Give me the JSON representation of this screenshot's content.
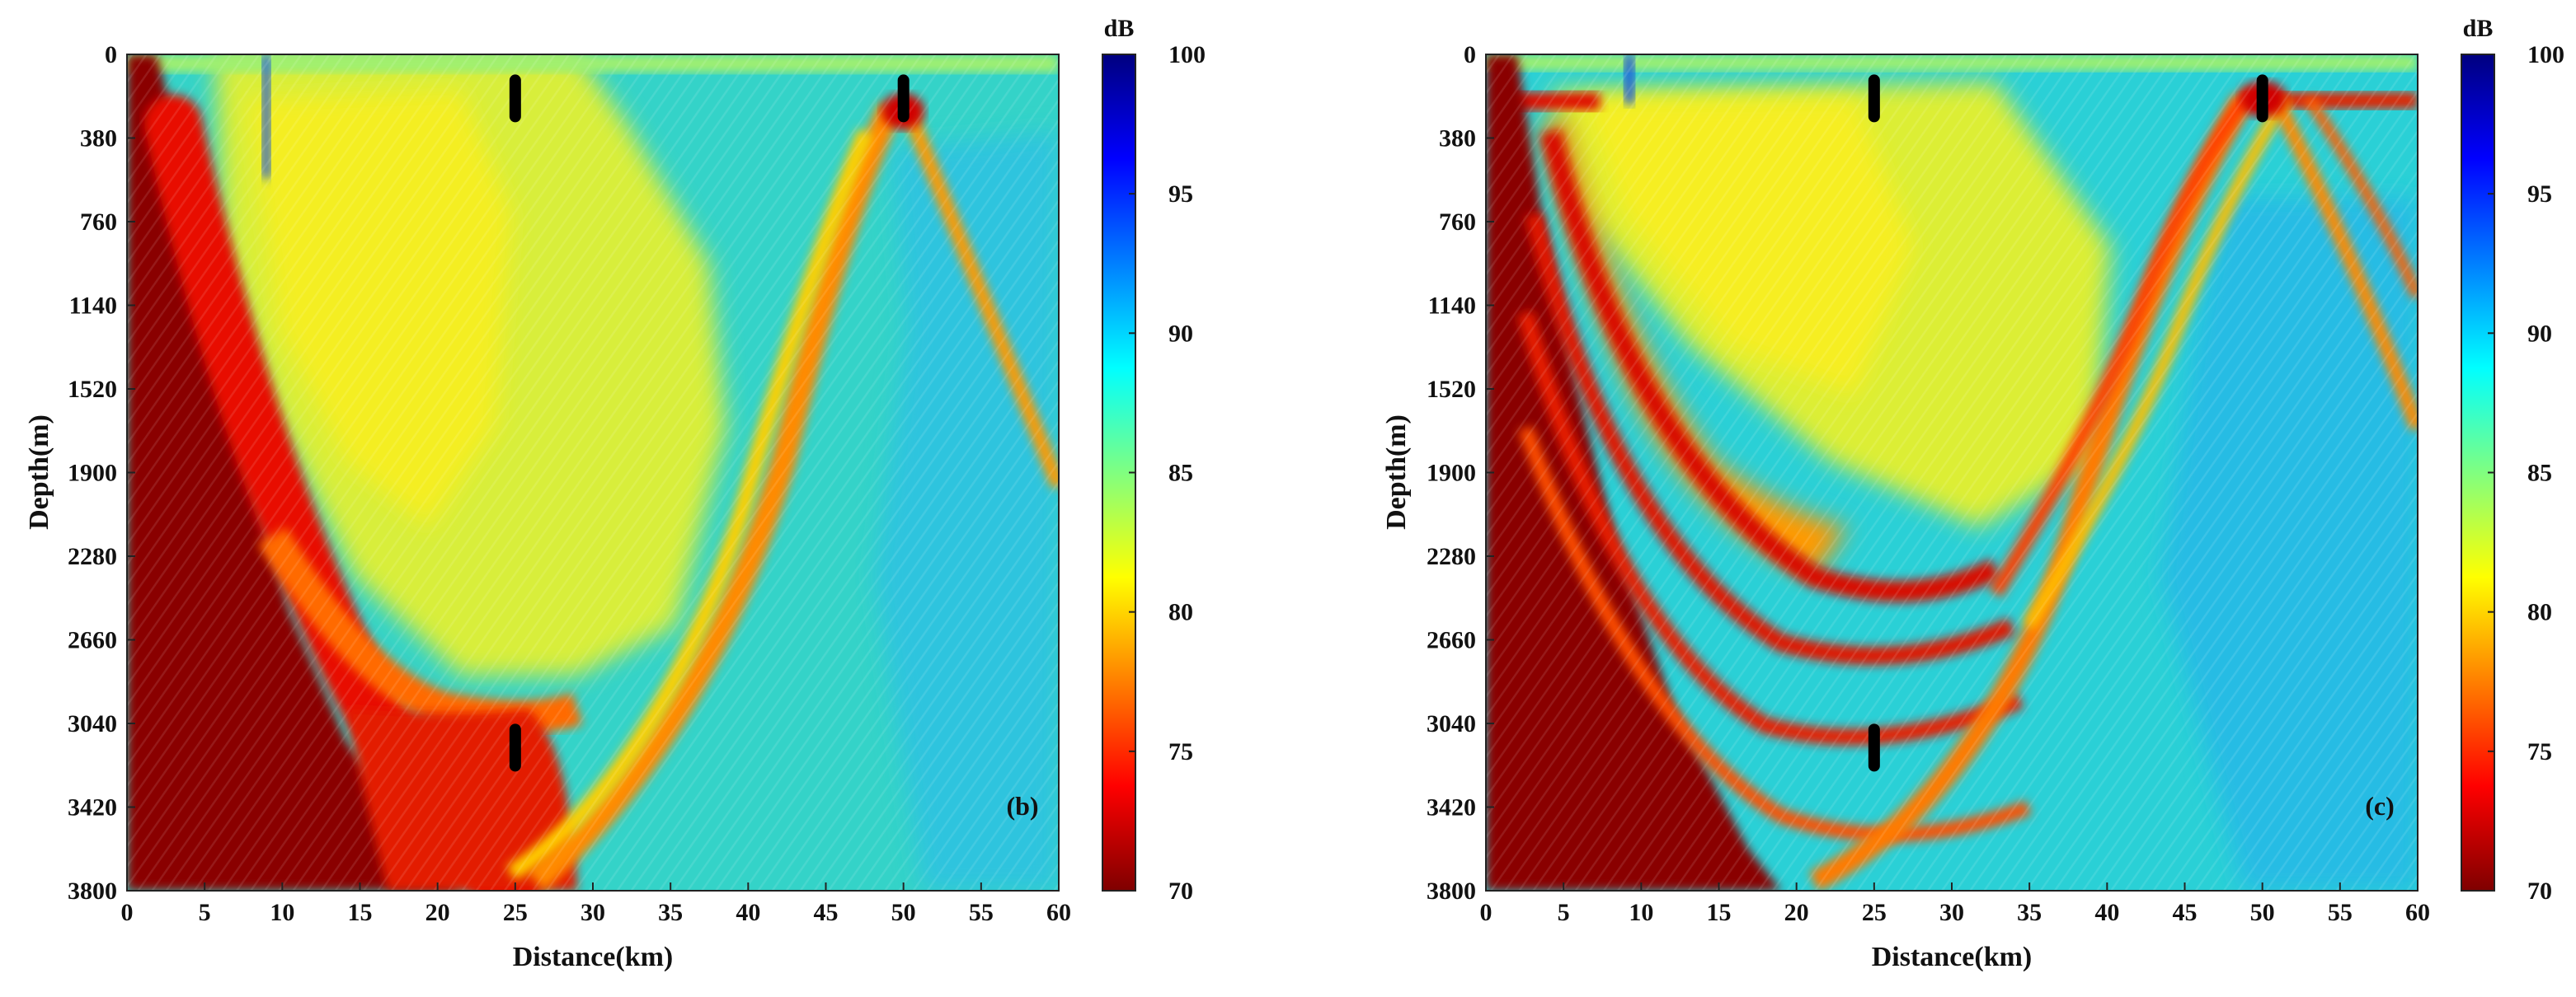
{
  "chart_data": [
    {
      "type": "heatmap",
      "panel_label": "(b)",
      "xlabel": "Distance(km)",
      "ylabel": "Depth(m)",
      "xlim": [
        0,
        60
      ],
      "ylim": [
        3800,
        0
      ],
      "x_ticks": [
        "0",
        "5",
        "10",
        "15",
        "20",
        "25",
        "30",
        "35",
        "40",
        "45",
        "50",
        "55",
        "60"
      ],
      "y_ticks": [
        "0",
        "380",
        "760",
        "1140",
        "1520",
        "1900",
        "2280",
        "2660",
        "3040",
        "3420",
        "3800"
      ],
      "colorbar": {
        "unit": "dB",
        "min": 70,
        "max": 100,
        "ticks": [
          "100",
          "95",
          "90",
          "85",
          "80",
          "75",
          "70"
        ]
      },
      "markers": [
        {
          "x": 25,
          "depth": 200
        },
        {
          "x": 50,
          "depth": 200
        },
        {
          "x": 25,
          "depth": 3150
        }
      ]
    },
    {
      "type": "heatmap",
      "panel_label": "(c)",
      "xlabel": "Distance(km)",
      "ylabel": "Depth(m)",
      "xlim": [
        0,
        60
      ],
      "ylim": [
        3800,
        0
      ],
      "x_ticks": [
        "0",
        "5",
        "10",
        "15",
        "20",
        "25",
        "30",
        "35",
        "40",
        "45",
        "50",
        "55",
        "60"
      ],
      "y_ticks": [
        "0",
        "380",
        "760",
        "1140",
        "1520",
        "1900",
        "2280",
        "2660",
        "3040",
        "3420",
        "3800"
      ],
      "colorbar": {
        "unit": "dB",
        "min": 70,
        "max": 100,
        "ticks": [
          "100",
          "95",
          "90",
          "85",
          "80",
          "75",
          "70"
        ]
      },
      "markers": [
        {
          "x": 25,
          "depth": 200
        },
        {
          "x": 50,
          "depth": 200
        },
        {
          "x": 25,
          "depth": 3150
        }
      ]
    }
  ],
  "colors": {
    "jet_dark_red": "#7f0000",
    "jet_red": "#ff0000",
    "jet_orange": "#ff8000",
    "jet_yellow": "#ffff00",
    "jet_green": "#80ff80",
    "jet_cyan": "#00ffff",
    "jet_blue": "#0000ff",
    "jet_dark_blue": "#00007f",
    "marker": "#000000"
  }
}
